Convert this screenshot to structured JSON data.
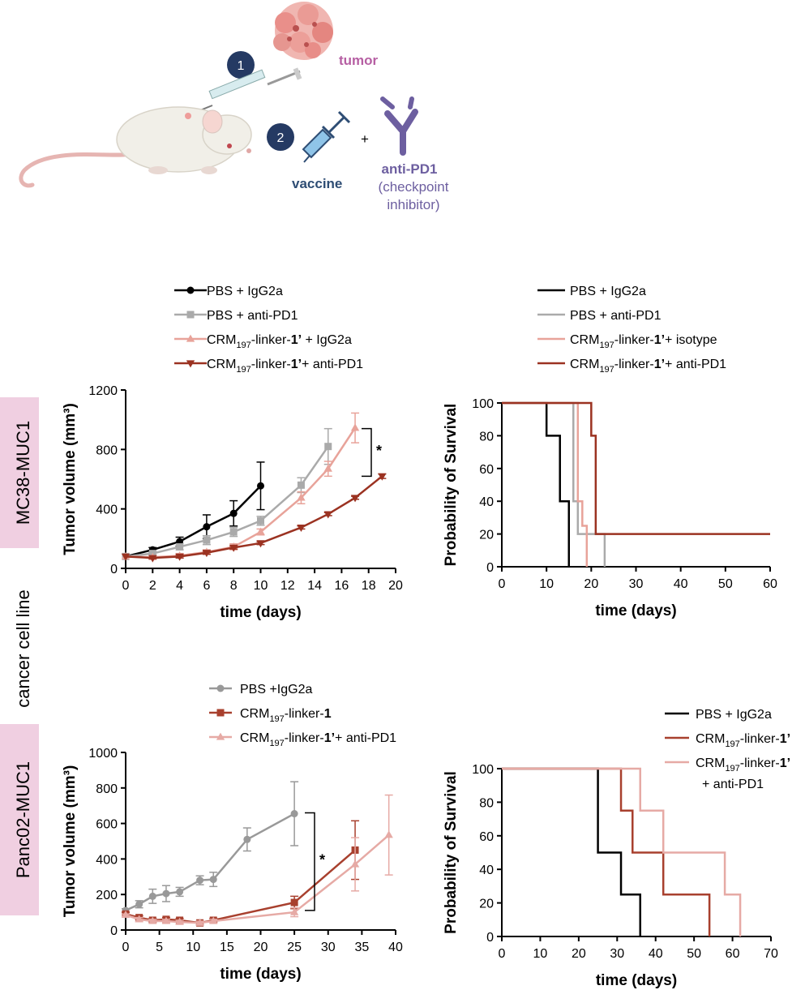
{
  "schematic": {
    "step1": "1",
    "step2": "2",
    "tumor_label": "tumor",
    "vaccine_label": "vaccine",
    "plus": "+",
    "antibody_label": "anti-PD1",
    "antibody_sub1": "(checkpoint",
    "antibody_sub2": "inhibitor)"
  },
  "side_labels": {
    "mc38": "MC38-MUC1",
    "group": "cancer cell line",
    "panc": "Panc02-MUC1"
  },
  "colors": {
    "black": "#000000",
    "gray": "#aaaaaa",
    "pink": "#e8a39a",
    "darkred": "#9b3221",
    "panc_gray": "#999999",
    "panc_red": "#a8402e",
    "panc_pink": "#e6aaa5",
    "tumor": "#b65fa3",
    "vaccine": "#2e4d74",
    "antibody": "#6d5fa0",
    "side_band": "#e4a8c8"
  },
  "chart_data": [
    {
      "id": "mc38_growth",
      "type": "line",
      "xlabel": "time (days)",
      "ylabel": "Tumor volume (mm³)",
      "xlim": [
        0,
        20
      ],
      "ylim": [
        0,
        1200
      ],
      "xticks": [
        "0",
        "2",
        "4",
        "6",
        "8",
        "10",
        "12",
        "14",
        "16",
        "18",
        "20"
      ],
      "yticks": [
        "0",
        "400",
        "800",
        "1200"
      ],
      "annotation": "*",
      "series": [
        {
          "name": "PBS + IgG2a",
          "marker": "circle",
          "color": "#000000",
          "x": [
            0,
            2,
            4,
            6,
            8,
            10
          ],
          "y": [
            80,
            125,
            180,
            280,
            370,
            555
          ],
          "err": [
            0,
            15,
            30,
            80,
            85,
            160
          ]
        },
        {
          "name": "PBS + anti-PD1",
          "marker": "square",
          "color": "#aaaaaa",
          "x": [
            0,
            2,
            4,
            6,
            8,
            10,
            13,
            15
          ],
          "y": [
            80,
            100,
            145,
            190,
            245,
            320,
            560,
            820
          ],
          "err": [
            0,
            10,
            20,
            30,
            30,
            30,
            50,
            120
          ]
        },
        {
          "name_parts": [
            "CRM",
            "197",
            "-linker-",
            "1’",
            " + IgG2a"
          ],
          "marker": "triangle",
          "color": "#e8a39a",
          "x": [
            0,
            2,
            4,
            6,
            8,
            10,
            13,
            15,
            17
          ],
          "y": [
            80,
            75,
            85,
            110,
            145,
            245,
            475,
            670,
            945
          ],
          "err": [
            0,
            10,
            15,
            15,
            20,
            20,
            40,
            50,
            100
          ]
        },
        {
          "name_parts": [
            "CRM",
            "197",
            "-linker-",
            "1’",
            "+ anti-PD1"
          ],
          "marker": "triangle-down",
          "color": "#9b3221",
          "x": [
            0,
            2,
            4,
            6,
            8,
            10,
            13,
            15,
            17,
            19
          ],
          "y": [
            80,
            70,
            80,
            105,
            140,
            170,
            275,
            365,
            475,
            620
          ],
          "err": [
            0,
            5,
            10,
            10,
            10,
            10,
            10,
            10,
            10,
            15
          ]
        }
      ]
    },
    {
      "id": "mc38_survival",
      "type": "line",
      "xlabel": "time (days)",
      "ylabel": "Probability of Survival",
      "xlim": [
        0,
        60
      ],
      "ylim": [
        0,
        100
      ],
      "xticks": [
        "0",
        "10",
        "20",
        "30",
        "40",
        "50",
        "60"
      ],
      "yticks": [
        "0",
        "20",
        "40",
        "60",
        "80",
        "100"
      ],
      "series": [
        {
          "name": "PBS + IgG2a",
          "color": "#000000",
          "steps": [
            [
              0,
              100
            ],
            [
              10,
              80
            ],
            [
              13,
              40
            ],
            [
              15,
              0
            ]
          ],
          "end": 15
        },
        {
          "name": "PBS + anti-PD1",
          "color": "#aaaaaa",
          "steps": [
            [
              0,
              100
            ],
            [
              16,
              40
            ],
            [
              17,
              20
            ],
            [
              23,
              0
            ]
          ],
          "end": 23
        },
        {
          "name_parts": [
            "CRM",
            "197",
            "-linker-",
            "1’",
            "+ isotype"
          ],
          "color": "#e8a39a",
          "steps": [
            [
              0,
              100
            ],
            [
              17,
              40
            ],
            [
              18,
              25
            ],
            [
              19,
              0
            ]
          ],
          "end": 19
        },
        {
          "name_parts": [
            "CRM",
            "197",
            "-linker-",
            "1’",
            "+ anti-PD1"
          ],
          "color": "#9b3221",
          "steps": [
            [
              0,
              100
            ],
            [
              20,
              80
            ],
            [
              21,
              20
            ]
          ],
          "end": 60
        }
      ]
    },
    {
      "id": "panc_growth",
      "type": "line",
      "xlabel": "time (days)",
      "ylabel": "Tumor volume (mm³)",
      "xlim": [
        0,
        40
      ],
      "ylim": [
        0,
        1000
      ],
      "xticks": [
        "0",
        "5",
        "10",
        "15",
        "20",
        "25",
        "30",
        "35",
        "40"
      ],
      "yticks": [
        "0",
        "200",
        "400",
        "600",
        "800",
        "1000"
      ],
      "annotation": "*",
      "series": [
        {
          "name": "PBS +IgG2a",
          "marker": "circle",
          "color": "#999999",
          "x": [
            0,
            2,
            4,
            6,
            8,
            11,
            13,
            18,
            25
          ],
          "y": [
            110,
            145,
            190,
            205,
            215,
            280,
            285,
            510,
            655
          ],
          "err": [
            10,
            20,
            40,
            45,
            25,
            25,
            40,
            65,
            180
          ]
        },
        {
          "name_parts": [
            "CRM",
            "197",
            "-linker-",
            "1",
            ""
          ],
          "marker": "square",
          "color": "#a8402e",
          "x": [
            0,
            2,
            4,
            6,
            8,
            11,
            13,
            25,
            34
          ],
          "y": [
            90,
            70,
            55,
            60,
            55,
            40,
            55,
            155,
            450
          ],
          "err": [
            10,
            10,
            10,
            10,
            10,
            10,
            10,
            35,
            165
          ]
        },
        {
          "name_parts": [
            "CRM",
            "197",
            "-linker-",
            "1’",
            "+ anti-PD1"
          ],
          "marker": "triangle",
          "color": "#e6aaa5",
          "x": [
            0,
            2,
            4,
            6,
            8,
            11,
            13,
            25,
            34,
            39
          ],
          "y": [
            85,
            60,
            50,
            50,
            45,
            40,
            50,
            100,
            370,
            535
          ],
          "err": [
            5,
            10,
            10,
            10,
            10,
            10,
            10,
            25,
            150,
            225
          ]
        }
      ]
    },
    {
      "id": "panc_survival",
      "type": "line",
      "xlabel": "time (days)",
      "ylabel": "Probability of Survival",
      "xlim": [
        0,
        70
      ],
      "ylim": [
        0,
        100
      ],
      "xticks": [
        "0",
        "10",
        "20",
        "30",
        "40",
        "50",
        "60",
        "70"
      ],
      "yticks": [
        "0",
        "20",
        "40",
        "60",
        "80",
        "100"
      ],
      "series": [
        {
          "name": "PBS + IgG2a",
          "color": "#000000",
          "steps": [
            [
              0,
              100
            ],
            [
              25,
              50
            ],
            [
              31,
              25
            ],
            [
              36,
              0
            ]
          ],
          "end": 36
        },
        {
          "name_parts": [
            "CRM",
            "197",
            "-linker-",
            "1’",
            ""
          ],
          "color": "#a8402e",
          "steps": [
            [
              0,
              100
            ],
            [
              31,
              75
            ],
            [
              34,
              50
            ],
            [
              42,
              25
            ],
            [
              54,
              0
            ]
          ],
          "end": 54
        },
        {
          "name_parts": [
            "CRM",
            "197",
            "-linker-",
            "1’",
            ""
          ],
          "name_line2": "+ anti-PD1",
          "color": "#e6aaa5",
          "steps": [
            [
              0,
              100
            ],
            [
              36,
              75
            ],
            [
              42,
              50
            ],
            [
              58,
              25
            ],
            [
              62,
              0
            ]
          ],
          "end": 62
        }
      ]
    }
  ]
}
